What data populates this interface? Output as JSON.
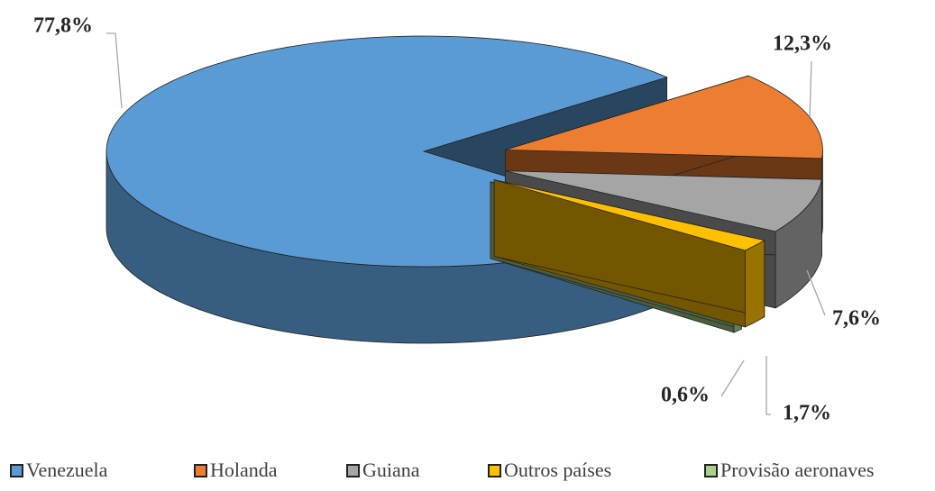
{
  "chart_data": {
    "type": "pie",
    "categories": [
      "Venezuela",
      "Holanda",
      "Guiana",
      "Outros países",
      "Provisão aeronaves"
    ],
    "values": [
      77.8,
      12.3,
      7.6,
      1.7,
      0.6
    ],
    "value_labels": [
      "77,8%",
      "12,3%",
      "7,6%",
      "1,7%",
      "0,6%"
    ],
    "colors": [
      "#5b9bd5",
      "#ed7d31",
      "#a5a5a5",
      "#ffc000",
      "#a9d18e"
    ],
    "legend": "bottom"
  }
}
